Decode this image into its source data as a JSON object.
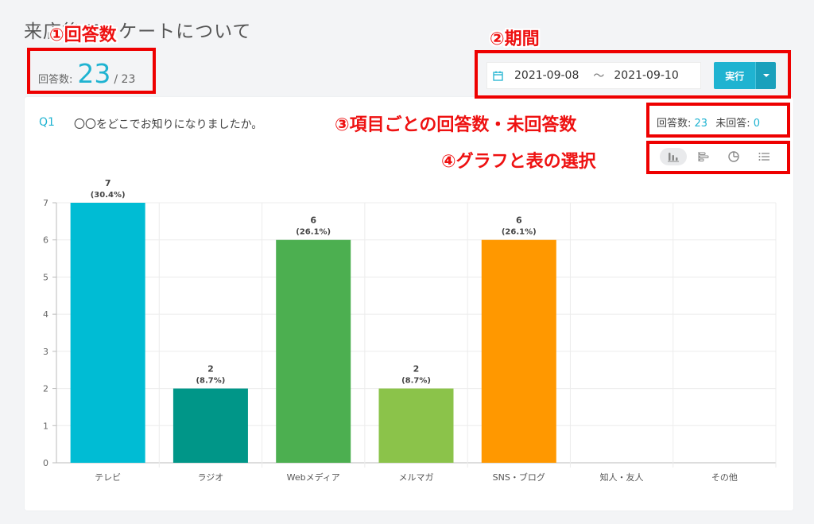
{
  "page": {
    "title": "来店後アンケートについて"
  },
  "responses": {
    "label": "回答数:",
    "count": "23",
    "total": "/ 23"
  },
  "period": {
    "calendar_icon": "calendar-icon",
    "start_date": "2021-09-08",
    "separator": "〜",
    "end_date": "2021-09-10",
    "run_label": "実行",
    "accent_color": "#1fb3d1"
  },
  "question": {
    "id": "Q1",
    "text": "〇〇をどこでお知りになりましたか。",
    "answered_label": "回答数:",
    "answered_count": "23",
    "unanswered_label": "未回答:",
    "unanswered_count": "0"
  },
  "view_options": [
    {
      "icon": "bar-chart-icon",
      "active": true
    },
    {
      "icon": "horizontal-bar-icon",
      "active": false
    },
    {
      "icon": "pie-chart-icon",
      "active": false
    },
    {
      "icon": "list-icon",
      "active": false
    }
  ],
  "annotations": {
    "a1": "①回答数",
    "a2": "②期間",
    "a3": "③項目ごとの回答数・未回答数",
    "a4": "④グラフと表の選択",
    "color": "#ee0000"
  },
  "chart_data": {
    "type": "bar",
    "categories": [
      "テレビ",
      "ラジオ",
      "Webメディア",
      "メルマガ",
      "SNS・ブログ",
      "知人・友人",
      "その他"
    ],
    "values": [
      7,
      2,
      6,
      2,
      6,
      0,
      0
    ],
    "value_labels": [
      "7",
      "2",
      "6",
      "2",
      "6",
      "",
      ""
    ],
    "percent_labels": [
      "(30.4%)",
      "(8.7%)",
      "(26.1%)",
      "(8.7%)",
      "(26.1%)",
      "",
      ""
    ],
    "colors": [
      "#00bcd4",
      "#009688",
      "#4caf50",
      "#8bc34a",
      "#ff9800",
      "#cccccc",
      "#cccccc"
    ],
    "yticks": [
      "0",
      "1",
      "2",
      "3",
      "4",
      "5",
      "6",
      "7"
    ],
    "ylim": [
      0,
      7
    ],
    "grid": true
  }
}
